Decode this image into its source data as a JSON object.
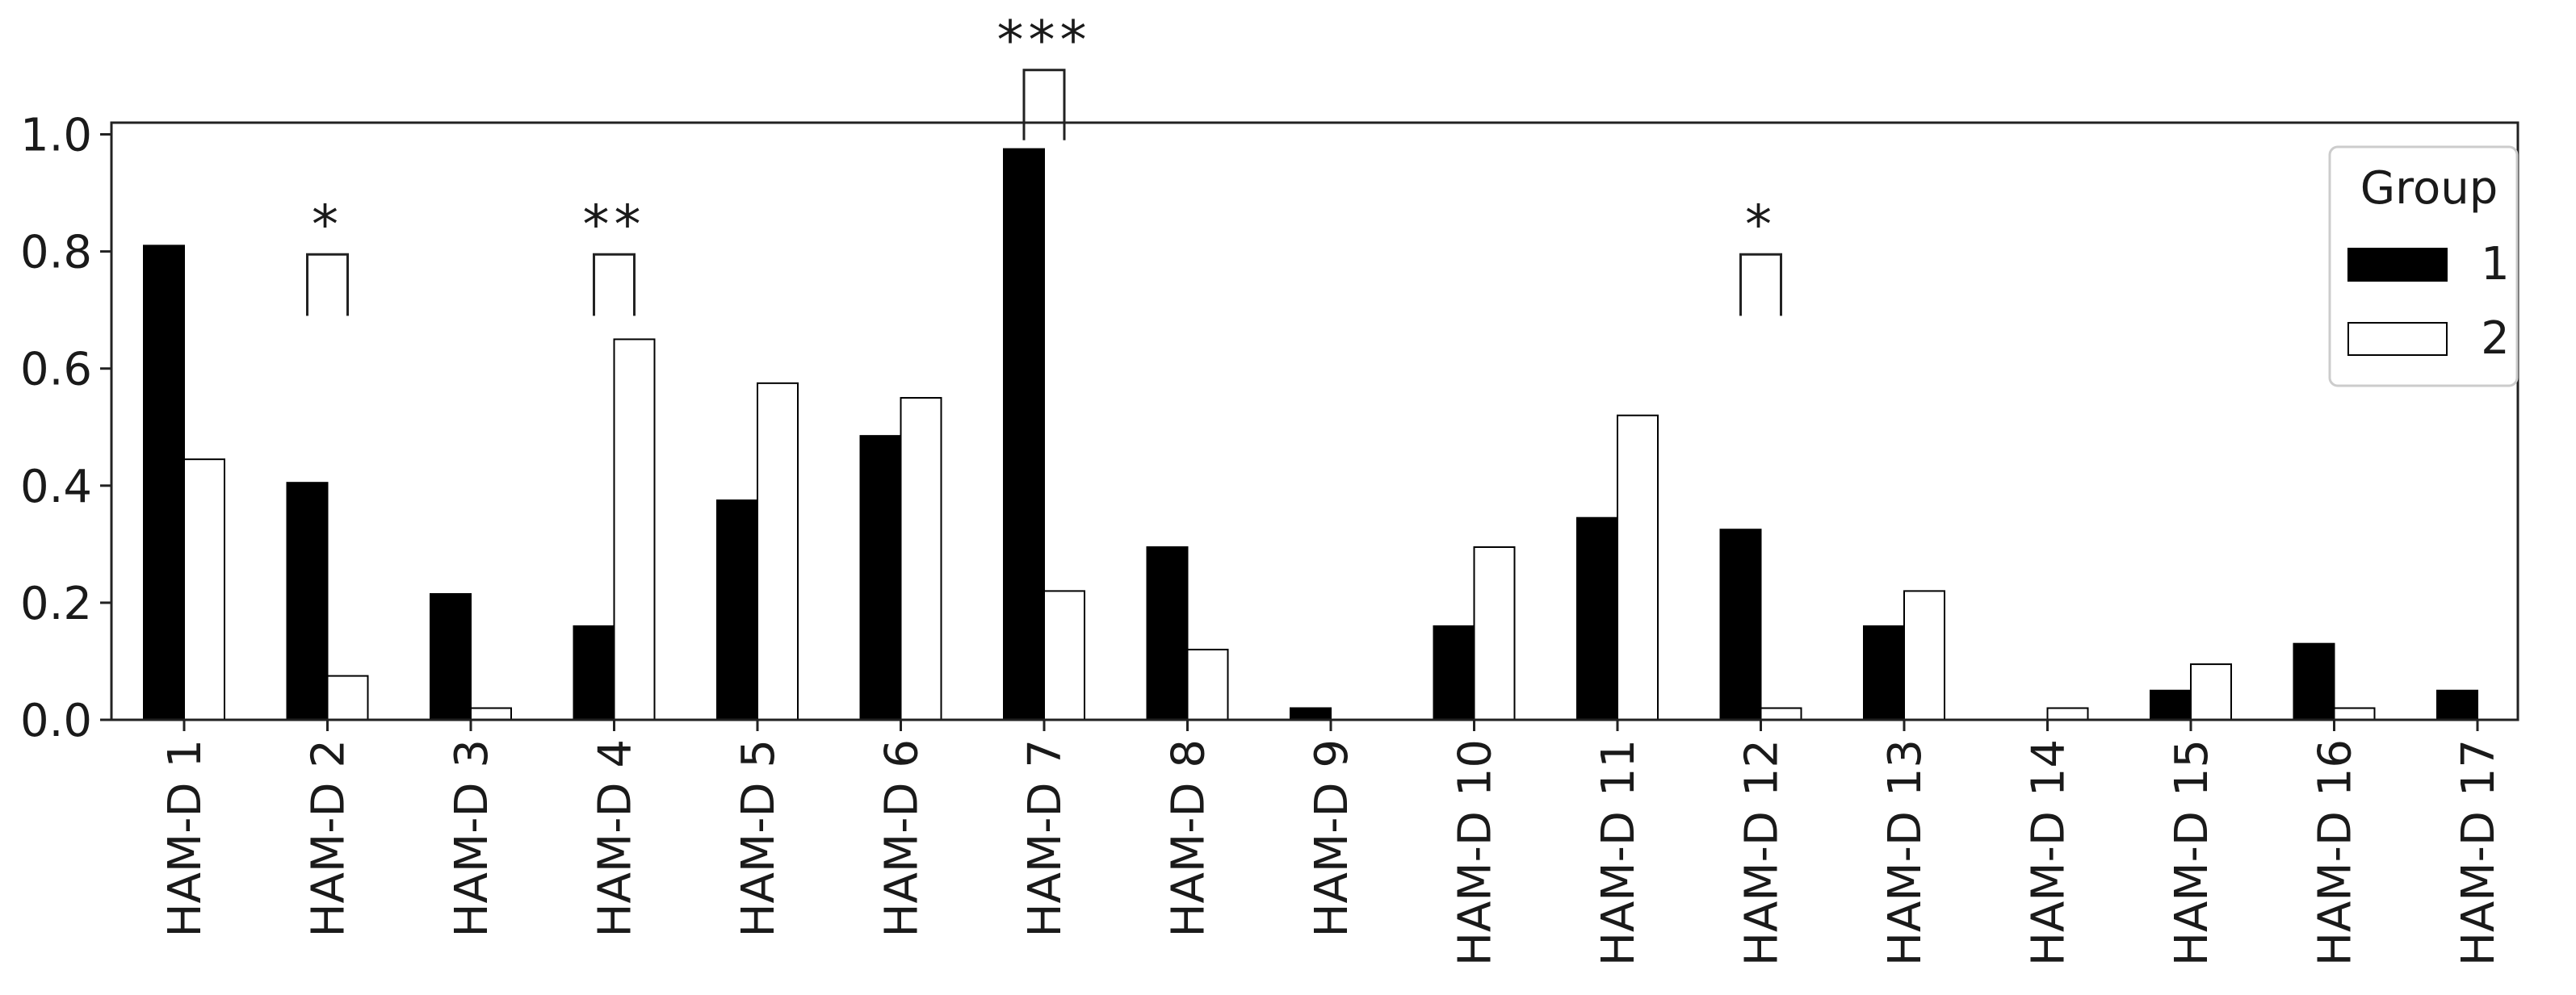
{
  "chart_data": {
    "type": "bar",
    "categories": [
      "HAM-D 1",
      "HAM-D 2",
      "HAM-D 3",
      "HAM-D 4",
      "HAM-D 5",
      "HAM-D 6",
      "HAM-D 7",
      "HAM-D 8",
      "HAM-D 9",
      "HAM-D 10",
      "HAM-D 11",
      "HAM-D 12",
      "HAM-D 13",
      "HAM-D 14",
      "HAM-D 15",
      "HAM-D 16",
      "HAM-D 17"
    ],
    "series": [
      {
        "name": "1",
        "color": "#000000",
        "values": [
          0.81,
          0.405,
          0.215,
          0.16,
          0.375,
          0.485,
          0.975,
          0.295,
          0.02,
          0.16,
          0.345,
          0.325,
          0.16,
          0.0,
          0.05,
          0.13,
          0.05
        ]
      },
      {
        "name": "2",
        "color": "#ffffff",
        "values": [
          0.445,
          0.075,
          0.02,
          0.65,
          0.575,
          0.55,
          0.22,
          0.12,
          0.0,
          0.295,
          0.52,
          0.02,
          0.22,
          0.02,
          0.095,
          0.02,
          0.0
        ]
      }
    ],
    "title": "",
    "xlabel": "",
    "ylabel": "",
    "ylim": [
      0,
      1.02
    ],
    "yticks": [
      "0.0",
      "0.2",
      "0.4",
      "0.6",
      "0.8",
      "1.0"
    ],
    "grid": false,
    "legend": {
      "title": "Group",
      "placement": "upper-right"
    },
    "annotations": [
      {
        "category": "HAM-D 2",
        "text": "*",
        "bracket_level": 0.795,
        "bracket_bottom": 0.69
      },
      {
        "category": "HAM-D 4",
        "text": "**",
        "bracket_level": 0.795,
        "bracket_bottom": 0.69
      },
      {
        "category": "HAM-D 7",
        "text": "***",
        "bracket_level": 1.11,
        "bracket_bottom": 0.99
      },
      {
        "category": "HAM-D 12",
        "text": "*",
        "bracket_level": 0.795,
        "bracket_bottom": 0.69
      }
    ]
  }
}
